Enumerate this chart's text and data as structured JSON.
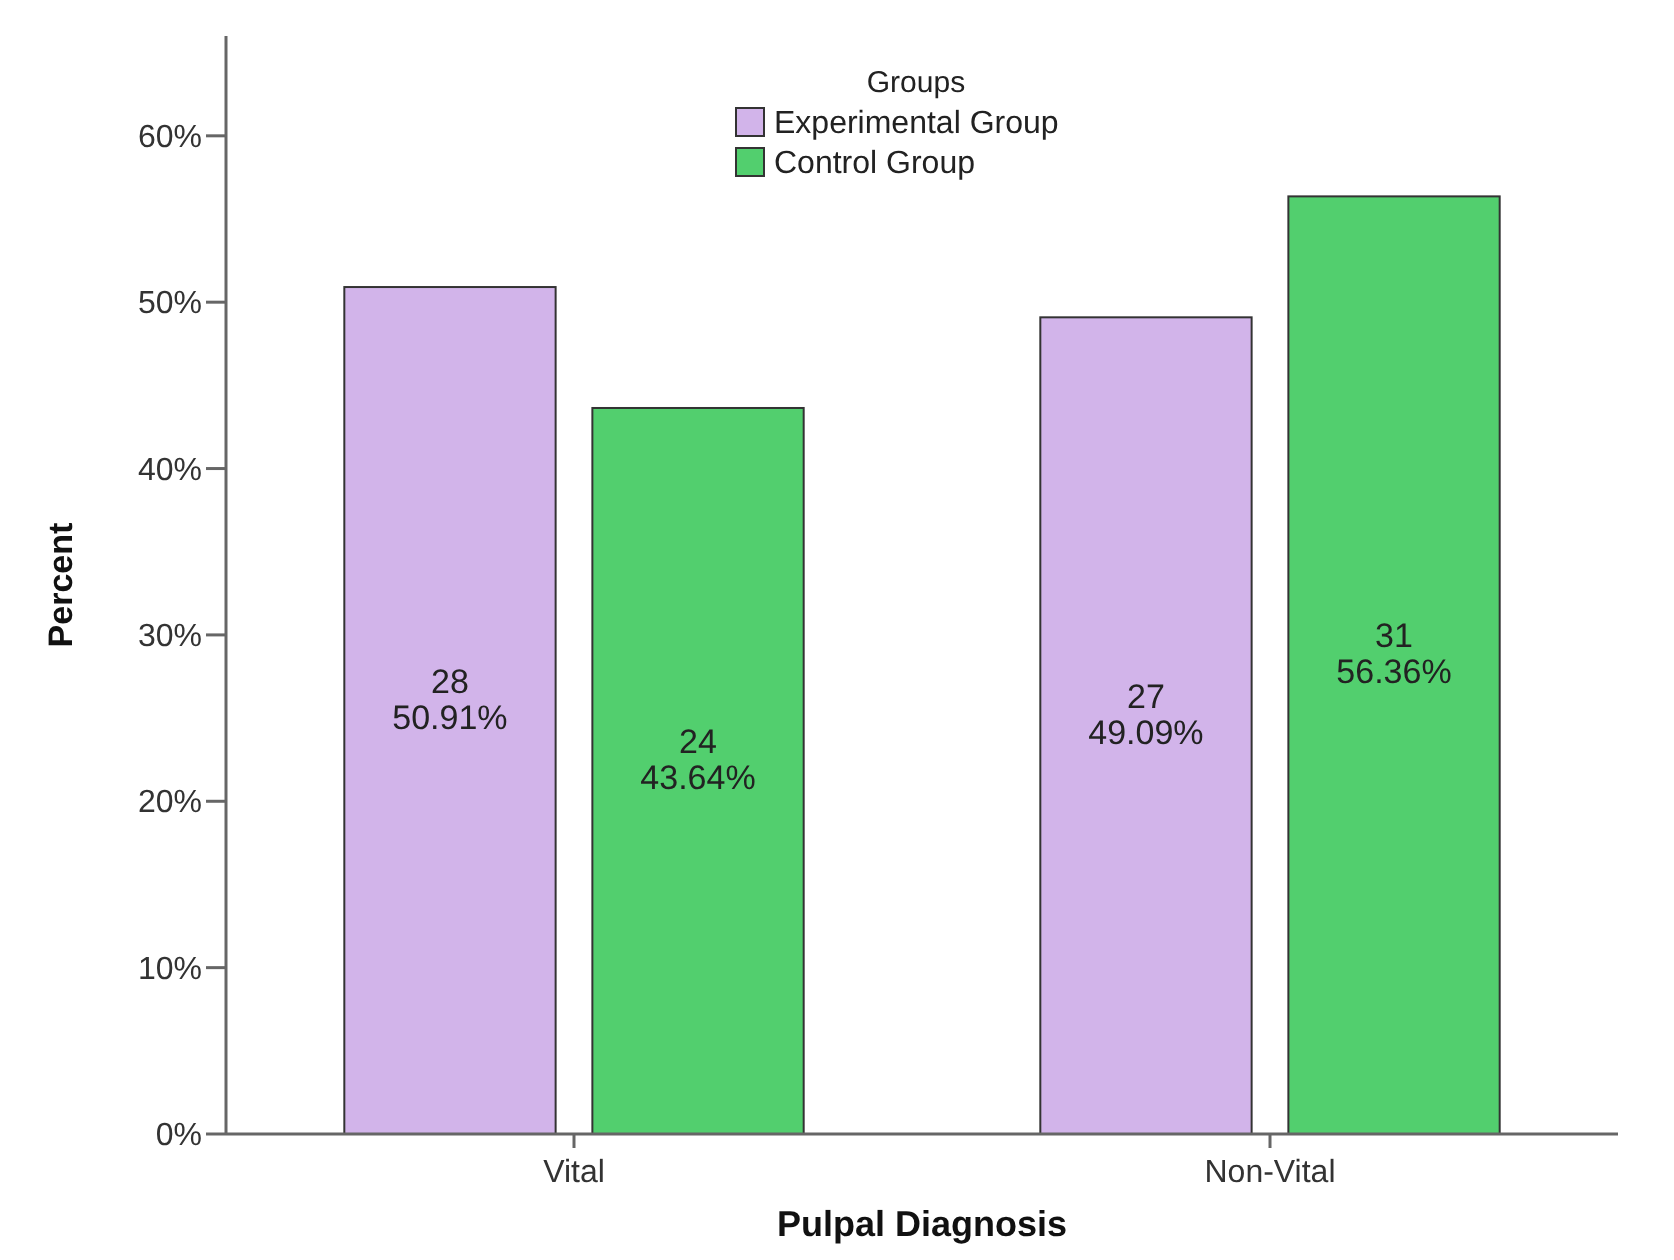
{
  "chart_data": {
    "type": "bar",
    "xlabel": "Pulpal Diagnosis",
    "ylabel": "Percent",
    "legend_title": "Groups",
    "legend": "top",
    "categories": [
      "Vital",
      "Non-Vital"
    ],
    "series": [
      {
        "name": "Experimental Group",
        "color": "#d2b4ea",
        "values": [
          50.91,
          49.09
        ],
        "value_labels": [
          "28\n50.91%",
          "27\n49.09%"
        ]
      },
      {
        "name": "Control Group",
        "color": "#52cf6e",
        "values": [
          43.64,
          56.36
        ],
        "value_labels": [
          "24\n43.64%",
          "31\n56.36%"
        ]
      }
    ],
    "ylim": [
      0,
      66
    ],
    "yticks": [
      {
        "value": 0,
        "label": "0%"
      },
      {
        "value": 10,
        "label": "10%"
      },
      {
        "value": 20,
        "label": "20%"
      },
      {
        "value": 30,
        "label": "30%"
      },
      {
        "value": 40,
        "label": "40%"
      },
      {
        "value": 50,
        "label": "50%"
      },
      {
        "value": 60,
        "label": "60%"
      }
    ],
    "grid": false
  }
}
